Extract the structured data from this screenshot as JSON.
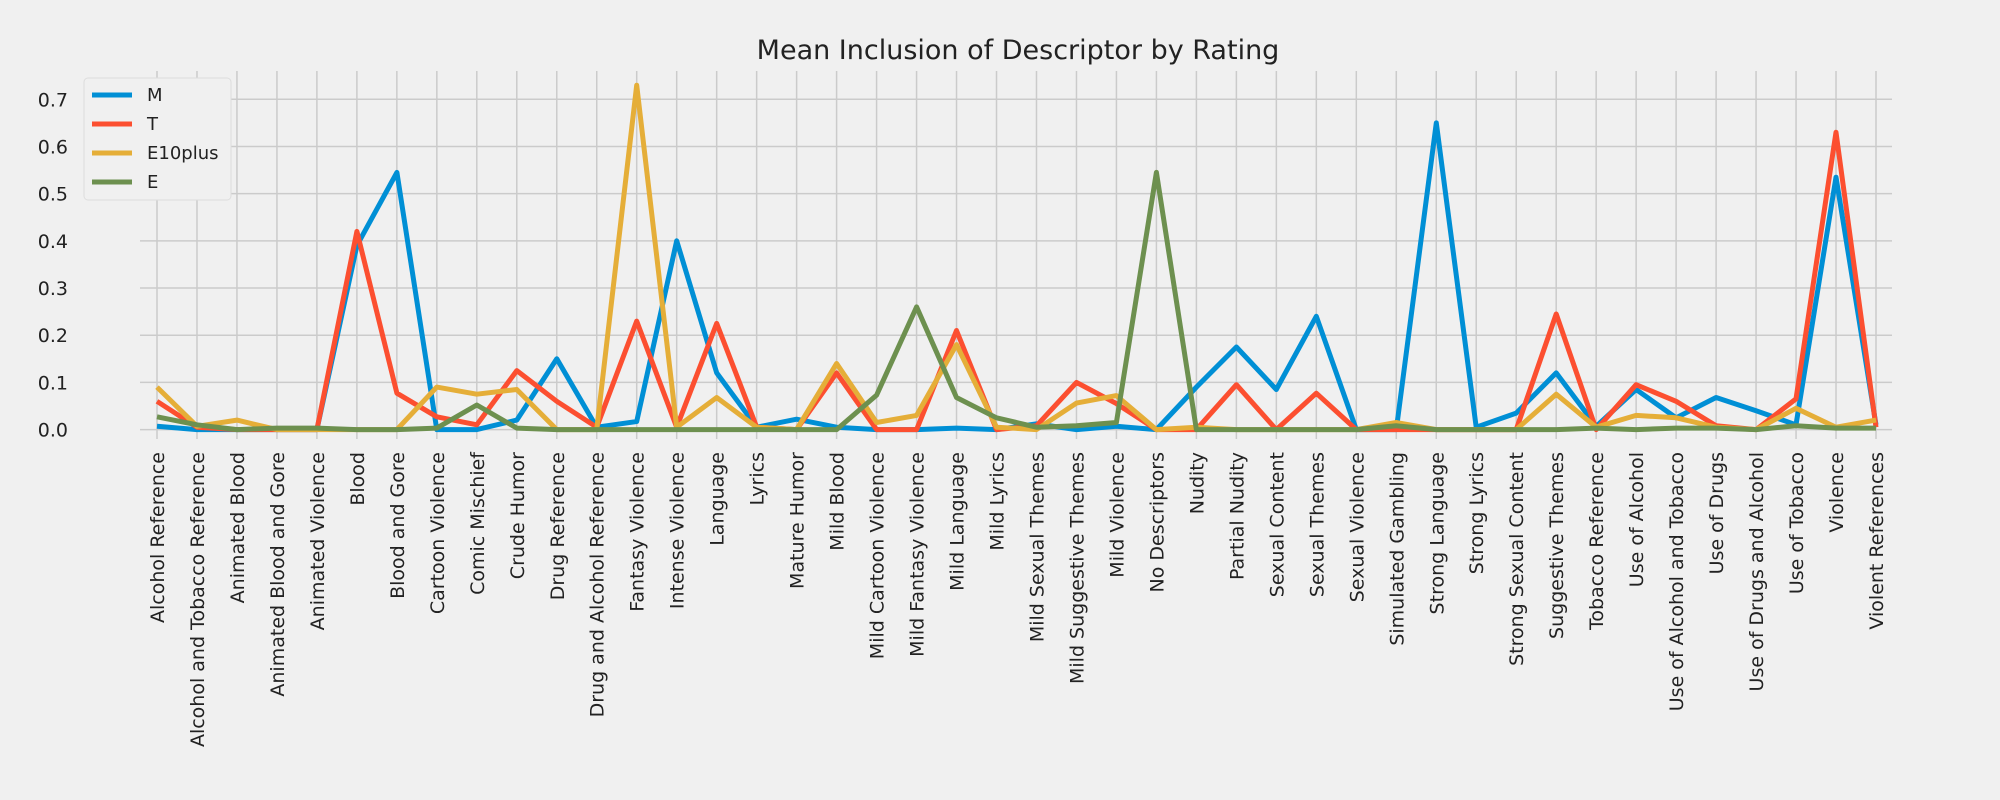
{
  "chart_data": {
    "type": "line",
    "title": "Mean Inclusion of Descriptor by Rating",
    "xlabel": "",
    "ylabel": "",
    "ylim": [
      -0.02,
      0.76
    ],
    "yticks": [
      "0.0",
      "0.1",
      "0.2",
      "0.3",
      "0.4",
      "0.5",
      "0.6",
      "0.7"
    ],
    "grid": true,
    "legend_position": "top-left",
    "categories": [
      "Alcohol Reference",
      "Alcohol and Tobacco Reference",
      "Animated Blood",
      "Animated Blood and Gore",
      "Animated Violence",
      "Blood",
      "Blood and Gore",
      "Cartoon Violence",
      "Comic Mischief",
      "Crude Humor",
      "Drug Reference",
      "Drug and Alcohol Reference",
      "Fantasy Violence",
      "Intense Violence",
      "Language",
      "Lyrics",
      "Mature Humor",
      "Mild Blood",
      "Mild Cartoon Violence",
      "Mild Fantasy Violence",
      "Mild Language",
      "Mild Lyrics",
      "Mild Sexual Themes",
      "Mild Suggestive Themes",
      "Mild Violence",
      "No Descriptors",
      "Nudity",
      "Partial Nudity",
      "Sexual Content",
      "Sexual Themes",
      "Sexual Violence",
      "Simulated Gambling",
      "Strong Language",
      "Strong Lyrics",
      "Strong Sexual Content",
      "Suggestive Themes",
      "Tobacco Reference",
      "Use of Alcohol",
      "Use of Alcohol and Tobacco",
      "Use of Drugs",
      "Use of Drugs and Alcohol",
      "Use of Tobacco",
      "Violence",
      "Violent References"
    ],
    "series": [
      {
        "name": "M",
        "color": "#008fd5",
        "values": [
          0.007,
          0.0,
          0.0,
          0.0,
          0.0,
          0.39,
          0.545,
          0.0,
          0.0,
          0.02,
          0.15,
          0.005,
          0.017,
          0.4,
          0.12,
          0.005,
          0.022,
          0.005,
          0.0,
          0.0,
          0.003,
          0.0,
          0.012,
          0.0,
          0.007,
          0.0,
          0.09,
          0.175,
          0.085,
          0.24,
          0.0,
          0.0,
          0.65,
          0.005,
          0.035,
          0.12,
          0.007,
          0.085,
          0.025,
          0.068,
          0.04,
          0.01,
          0.535,
          0.01
        ]
      },
      {
        "name": "T",
        "color": "#fc4f30",
        "values": [
          0.06,
          0.005,
          0.0,
          0.0,
          0.0,
          0.42,
          0.077,
          0.027,
          0.01,
          0.125,
          0.06,
          0.005,
          0.23,
          0.005,
          0.225,
          0.005,
          0.0,
          0.12,
          0.0,
          0.0,
          0.21,
          0.0,
          0.008,
          0.1,
          0.055,
          0.0,
          0.0,
          0.095,
          0.0,
          0.077,
          0.0,
          0.0,
          0.0,
          0.0,
          0.0,
          0.245,
          0.0,
          0.095,
          0.06,
          0.008,
          0.0,
          0.065,
          0.63,
          0.005
        ]
      },
      {
        "name": "E10plus",
        "color": "#e5ae38",
        "values": [
          0.09,
          0.007,
          0.02,
          0.0,
          0.0,
          0.0,
          0.0,
          0.09,
          0.075,
          0.085,
          0.0,
          0.0,
          0.73,
          0.005,
          0.068,
          0.005,
          0.0,
          0.14,
          0.015,
          0.03,
          0.18,
          0.005,
          0.0,
          0.056,
          0.072,
          0.0,
          0.005,
          0.0,
          0.0,
          0.0,
          0.0,
          0.015,
          0.0,
          0.0,
          0.0,
          0.075,
          0.005,
          0.03,
          0.025,
          0.005,
          0.0,
          0.045,
          0.005,
          0.02
        ]
      },
      {
        "name": "E",
        "color": "#6d904f",
        "values": [
          0.027,
          0.01,
          0.0,
          0.003,
          0.003,
          0.0,
          0.0,
          0.003,
          0.052,
          0.003,
          0.0,
          0.0,
          0.0,
          0.0,
          0.0,
          0.0,
          0.0,
          0.0,
          0.073,
          0.26,
          0.068,
          0.025,
          0.005,
          0.008,
          0.015,
          0.545,
          0.0,
          0.0,
          0.0,
          0.0,
          0.0,
          0.008,
          0.0,
          0.0,
          0.0,
          0.0,
          0.003,
          0.0,
          0.003,
          0.003,
          0.0,
          0.008,
          0.003,
          0.003
        ]
      }
    ]
  }
}
